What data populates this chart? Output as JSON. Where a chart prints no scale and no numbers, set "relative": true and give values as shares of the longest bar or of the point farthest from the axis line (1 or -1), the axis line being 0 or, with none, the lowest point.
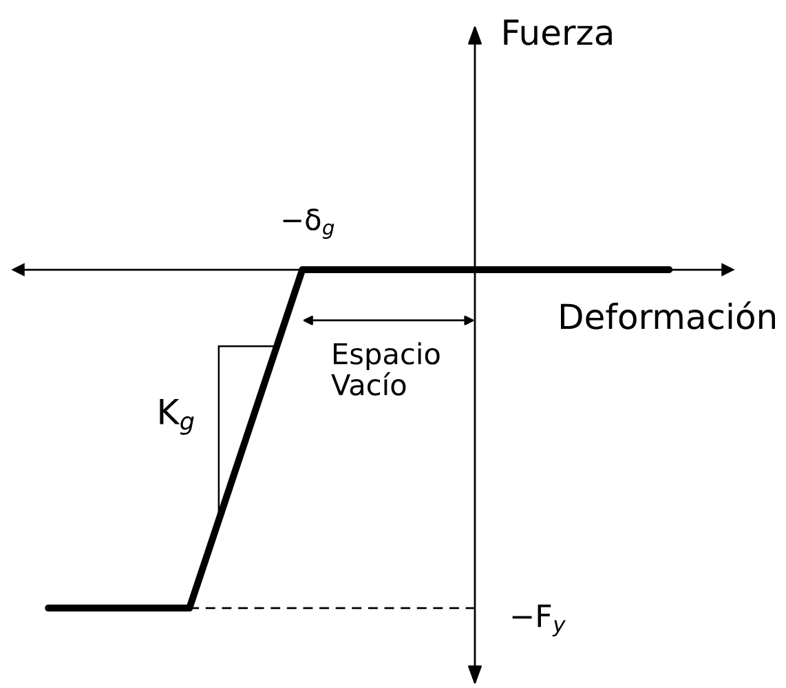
{
  "chart_data": {
    "type": "line",
    "relative": true,
    "xlabel": "Deformación",
    "categories": [
      null,
      null,
      null,
      null,
      null,
      null,
      null,
      null,
      null,
      null,
      null,
      null,
      null,
      null,
      null,
      null,
      null,
      null,
      null,
      null,
      null,
      null,
      null
    ],
    "series": [
      {
        "color": "#000000",
        "values": [
          -1,
          -1,
          -1,
          -1,
          -1,
          -1,
          -0.75,
          -0.5,
          -0.25,
          0,
          0,
          0,
          0,
          0,
          0,
          0,
          0,
          0,
          0,
          0,
          0,
          0,
          0
        ]
      }
    ],
    "ref_lines": [
      {
        "axis": "y",
        "value": -1,
        "label": "−F$_{y}$",
        "color": "#000000",
        "line_style": "dashed"
      }
    ],
    "annotations": [
      {
        "text": "−δ$_{g}$",
        "y": 0
      },
      "Espacio\nVacío",
      "K$_{g}$",
      "Fuerza"
    ]
  }
}
